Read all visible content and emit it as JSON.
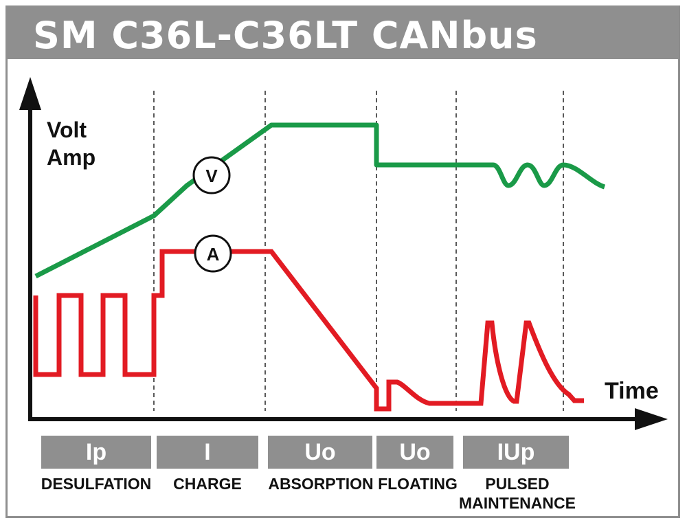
{
  "title": "SM C36L-C36LT CANbus",
  "axes": {
    "y_label_line1": "Volt",
    "y_label_line2": "Amp",
    "x_label": "Time"
  },
  "markers": {
    "voltage": "V",
    "current": "A"
  },
  "phases": [
    {
      "code": "Ip",
      "name": "DESULFATION"
    },
    {
      "code": "I",
      "name": "CHARGE"
    },
    {
      "code": "Uo",
      "name": "ABSORPTION"
    },
    {
      "code": "Uo",
      "name": "FLOATING"
    },
    {
      "code": "IUp",
      "name": "PULSED MAINTENANCE"
    }
  ],
  "colors": {
    "voltage_line": "#1a9a48",
    "current_line": "#e21b23",
    "banner": "#8f8f8f",
    "axis": "#111111"
  }
}
